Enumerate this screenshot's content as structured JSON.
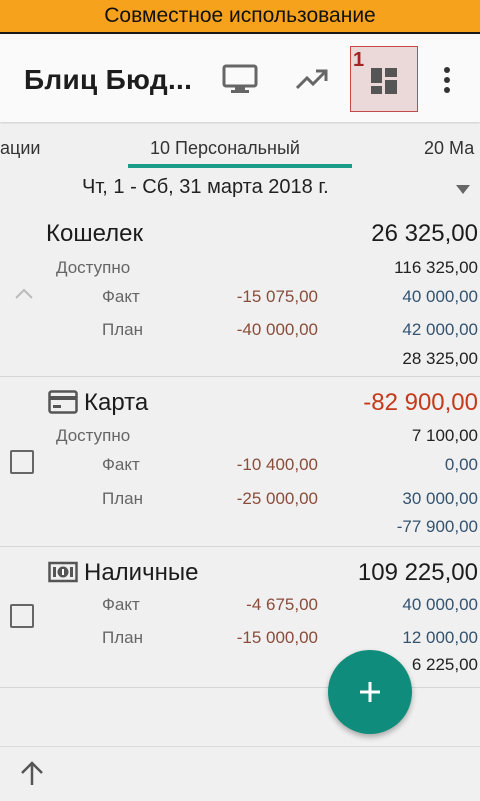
{
  "banner": {
    "text": "Совместное использование"
  },
  "appbar": {
    "title": "Блиц Бюд...",
    "badge": "1"
  },
  "tabs": [
    {
      "label": "рации"
    },
    {
      "label": "10 Персональный"
    },
    {
      "label": "20 Ма"
    }
  ],
  "period": {
    "label": "Чт, 1 - Сб, 31 марта 2018 г."
  },
  "labels": {
    "available": "Доступно",
    "fact": "Факт",
    "plan": "План"
  },
  "accounts": [
    {
      "name": "Кошелек",
      "total": "26 325,00",
      "available": "116 325,00",
      "fact_spent": "-15 075,00",
      "fact_income": "40 000,00",
      "plan_spent": "-40 000,00",
      "plan_income": "42 000,00",
      "remainder": "28 325,00"
    },
    {
      "name": "Карта",
      "total": "-82 900,00",
      "available": "7 100,00",
      "fact_spent": "-10 400,00",
      "fact_income": "0,00",
      "plan_spent": "-25 000,00",
      "plan_income": "30 000,00",
      "remainder": "-77 900,00"
    },
    {
      "name": "Наличные",
      "total": "109 225,00",
      "fact_spent": "-4 675,00",
      "fact_income": "40 000,00",
      "plan_spent": "-15 000,00",
      "plan_income": "12 000,00",
      "remainder": "6 225,00"
    }
  ],
  "colors": {
    "banner": "#f7a21c",
    "accent": "#0f8c7b",
    "negative": "#c43a1a",
    "income": "#34536f"
  }
}
